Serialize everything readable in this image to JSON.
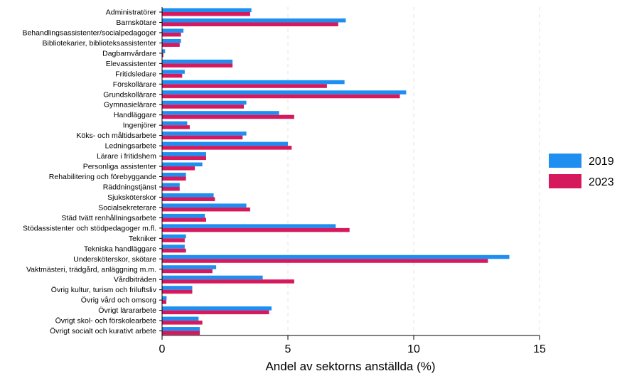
{
  "chart_data": {
    "type": "bar",
    "orientation": "horizontal",
    "title": "",
    "xlabel": "Andel av sektorns anställda (%)",
    "ylabel": "",
    "xlim": [
      0,
      15
    ],
    "xticks": [
      0,
      5,
      10,
      15
    ],
    "grid": "vertical dashed",
    "legend_position": "right",
    "categories": [
      "Administratörer",
      "Barnskötare",
      "Behandlingsassistenter/socialpedagoger",
      "Bibliotekarier, biblioteksassistenter",
      "Dagbarnvårdare",
      "Elevassistenter",
      "Fritidsledare",
      "Förskollärare",
      "Grundskollärare",
      "Gymnasielärare",
      "Handläggare",
      "Ingenjörer",
      "Köks- och måltidsarbete",
      "Ledningsarbete",
      "Lärare i fritidshem",
      "Personliga assistenter",
      "Rehabilitering och förebyggande",
      "Räddningstjänst",
      "Sjuksköterskor",
      "Socialsekreterare",
      "Städ tvätt renhållningsarbete",
      "Stödassistenter och stödpedagoger m.fl.",
      "Tekniker",
      "Tekniska handläggare",
      "Undersköterskor, skötare",
      "Vaktmästeri, trädgård, anläggning m.m.",
      "Vårdbiträden",
      "Övrig kultur, turism och friluftsliv",
      "Övrig vård och omsorg",
      "Övrigt lärararbete",
      "Övrigt skol- och förskolearbete",
      "Övrigt socialt och kurativt arbete"
    ],
    "series": [
      {
        "name": "2019",
        "color": "#1f8ef1",
        "values": [
          3.55,
          7.3,
          0.85,
          0.75,
          0.12,
          2.8,
          0.9,
          7.25,
          9.7,
          3.35,
          4.65,
          1.0,
          3.35,
          5.0,
          1.75,
          1.6,
          0.95,
          0.7,
          2.05,
          3.35,
          1.7,
          6.9,
          0.95,
          0.9,
          13.8,
          2.15,
          4.0,
          1.2,
          0.18,
          4.35,
          1.45,
          1.5
        ]
      },
      {
        "name": "2023",
        "color": "#d6185d",
        "values": [
          3.5,
          7.0,
          0.75,
          0.7,
          0.05,
          2.8,
          0.8,
          6.55,
          9.45,
          3.25,
          5.25,
          1.1,
          3.2,
          5.15,
          1.75,
          1.3,
          0.95,
          0.7,
          2.1,
          3.5,
          1.75,
          7.45,
          0.9,
          0.95,
          12.95,
          2.0,
          5.25,
          1.2,
          0.17,
          4.25,
          1.6,
          1.5
        ]
      }
    ]
  }
}
